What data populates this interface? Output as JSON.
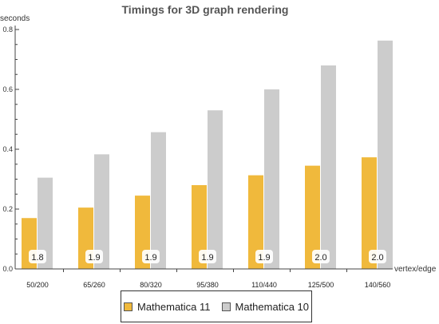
{
  "chart_data": {
    "type": "bar",
    "title": "Timings for 3D graph rendering",
    "ylabel": "seconds",
    "xlabel": "vertex/edge",
    "ylim": [
      0,
      0.8
    ],
    "yticks": [
      0.0,
      0.2,
      0.4,
      0.6,
      0.8
    ],
    "categories": [
      "50/200",
      "65/260",
      "80/320",
      "95/380",
      "110/440",
      "125/500",
      "140/560"
    ],
    "series": [
      {
        "name": "Mathematica 11",
        "color": "#f0b93c",
        "values": [
          0.17,
          0.205,
          0.245,
          0.28,
          0.313,
          0.345,
          0.373
        ]
      },
      {
        "name": "Mathematica 10",
        "color": "#cccccc",
        "values": [
          0.305,
          0.383,
          0.457,
          0.53,
          0.6,
          0.68,
          0.763
        ]
      }
    ],
    "annotations": [
      "1.8",
      "1.9",
      "1.9",
      "1.9",
      "1.9",
      "2.0",
      "2.0"
    ],
    "legend_position": "bottom"
  }
}
